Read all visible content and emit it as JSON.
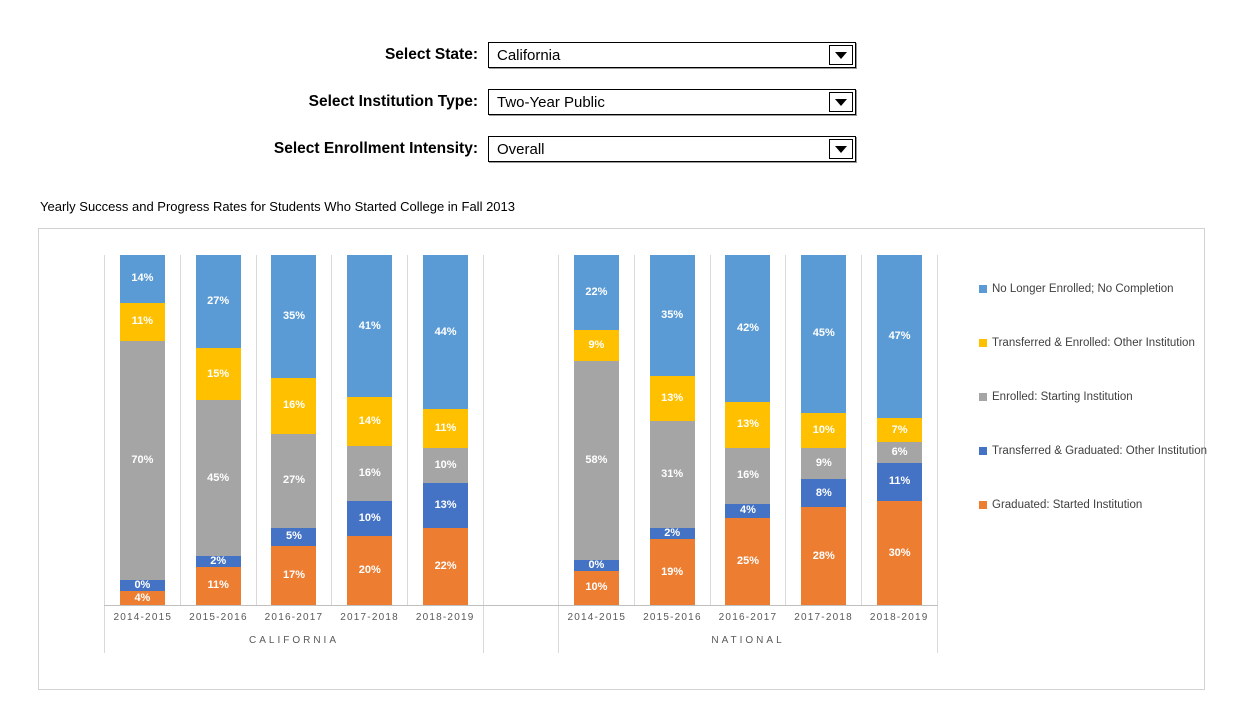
{
  "filters": {
    "state": {
      "label": "Select State:",
      "value": "California"
    },
    "institution_type": {
      "label": "Select Institution Type:",
      "value": "Two-Year Public"
    },
    "enrollment_intensity": {
      "label": "Select Enrollment Intensity:",
      "value": "Overall"
    }
  },
  "chart_title": "Yearly Success and Progress Rates for Students Who Started College in Fall 2013",
  "chart_data": {
    "type": "bar",
    "subtype": "100%-stacked-column",
    "title": "Yearly Success and Progress Rates for Students Who Started College in Fall 2013",
    "value_format": "percent",
    "ylim": [
      0,
      100
    ],
    "stack_order": "bottom-to-top",
    "categories": [
      "2014-2015",
      "2015-2016",
      "2016-2017",
      "2017-2018",
      "2018-2019"
    ],
    "series": [
      {
        "name": "Graduated: Started Institution",
        "color": "#ED7D31"
      },
      {
        "name": "Transferred & Graduated: Other Institution",
        "color": "#4472C4"
      },
      {
        "name": "Enrolled: Starting Institution",
        "color": "#A5A5A5"
      },
      {
        "name": "Transferred & Enrolled: Other Institution",
        "color": "#FFC000"
      },
      {
        "name": "No Longer Enrolled; No Completion",
        "color": "#5B9BD5"
      }
    ],
    "groups": [
      {
        "name": "CALIFORNIA",
        "values": [
          [
            4,
            11,
            17,
            20,
            22
          ],
          [
            0,
            2,
            5,
            10,
            13
          ],
          [
            70,
            45,
            27,
            16,
            10
          ],
          [
            11,
            15,
            16,
            14,
            11
          ],
          [
            14,
            27,
            35,
            41,
            44
          ]
        ]
      },
      {
        "name": "NATIONAL",
        "values": [
          [
            10,
            19,
            25,
            28,
            30
          ],
          [
            0,
            2,
            4,
            8,
            11
          ],
          [
            58,
            31,
            16,
            9,
            6
          ],
          [
            9,
            13,
            13,
            10,
            7
          ],
          [
            22,
            35,
            42,
            45,
            47
          ]
        ]
      }
    ],
    "legend": {
      "position": "right",
      "entries": [
        "No Longer Enrolled; No Completion",
        "Transferred & Enrolled: Other Institution",
        "Enrolled: Starting Institution",
        "Transferred & Graduated: Other Institution",
        "Graduated: Started Institution"
      ]
    },
    "grid": "vertical-category-separators"
  }
}
